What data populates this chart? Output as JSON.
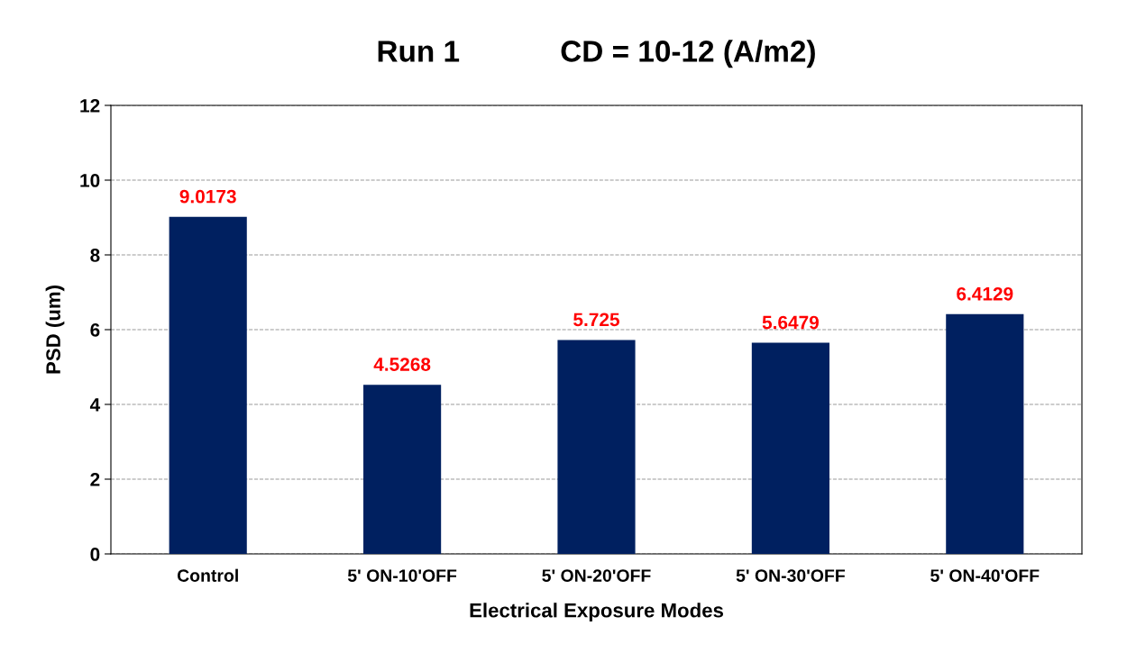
{
  "chart_data": {
    "type": "bar",
    "title": "Run 1            CD = 10-12 (A/m2)",
    "xlabel": "Electrical Exposure Modes",
    "ylabel": "PSD (um)",
    "categories": [
      "Control",
      "5' ON-10'OFF",
      "5' ON-20'OFF",
      "5' ON-30'OFF",
      "5' ON-40'OFF"
    ],
    "values": [
      9.0173,
      4.5268,
      5.725,
      5.6479,
      6.4129
    ],
    "color": "#002060",
    "ylim": [
      0,
      12
    ],
    "yticks": [
      0,
      2,
      4,
      6,
      8,
      10,
      12
    ],
    "grid": "y",
    "data_labels": true
  }
}
